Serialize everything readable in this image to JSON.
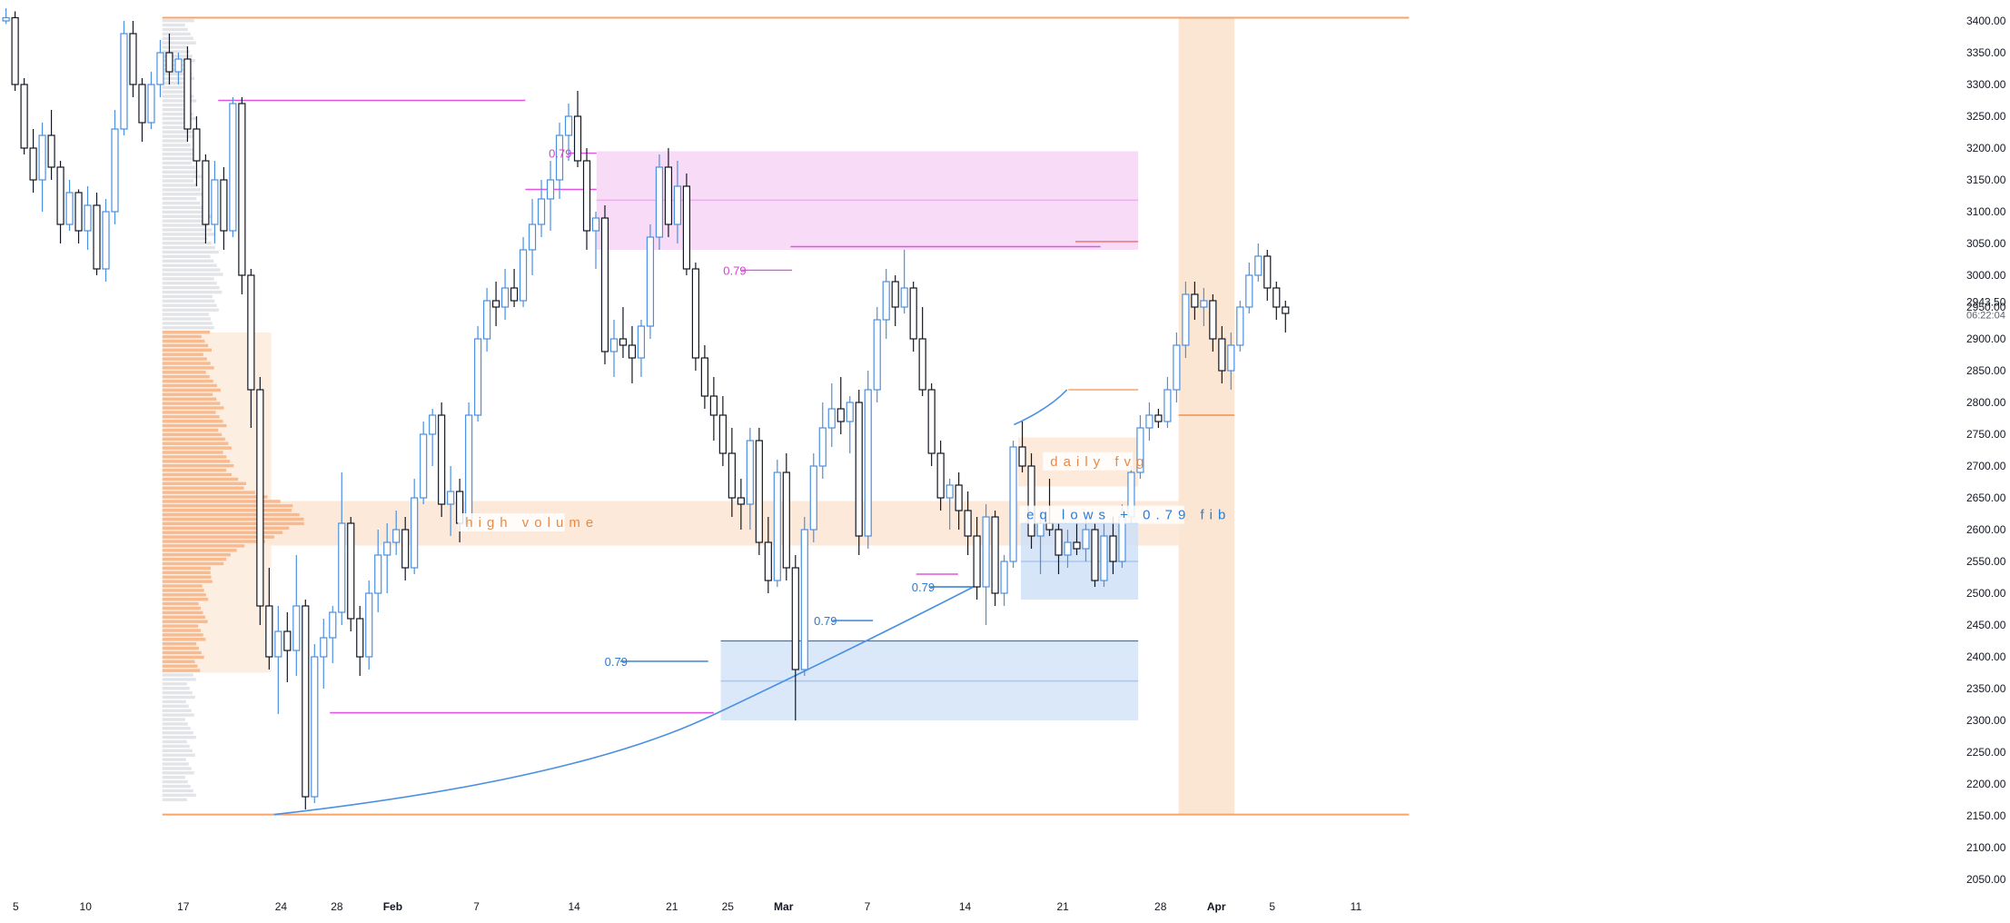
{
  "chart_data": {
    "type": "candlestick",
    "instrument_note": "",
    "y_axis": {
      "ticks": [
        3400,
        3350,
        3300,
        3250,
        3200,
        3150,
        3100,
        3050,
        3000,
        2950,
        2900,
        2850,
        2800,
        2750,
        2700,
        2650,
        2600,
        2550,
        2500,
        2450,
        2400,
        2350,
        2300,
        2250,
        2200,
        2150,
        2100,
        2050
      ],
      "tick_labels": [
        "3400.00",
        "3350.00",
        "3300.00",
        "3250.00",
        "3200.00",
        "3150.00",
        "3100.00",
        "3050.00",
        "3000.00",
        "2950.00",
        "2900.00",
        "2850.00",
        "2800.00",
        "2750.00",
        "2700.00",
        "2650.00",
        "2600.00",
        "2550.00",
        "2500.00",
        "2450.00",
        "2400.00",
        "2350.00",
        "2300.00",
        "2250.00",
        "2200.00",
        "2150.00",
        "2100.00",
        "2050.00"
      ],
      "range": [
        2020,
        3420
      ],
      "last_price_label": "2943.50",
      "countdown_label": "06:22:04"
    },
    "x_axis": {
      "ticks": [
        {
          "day": -26,
          "label": "5"
        },
        {
          "day": -21,
          "label": "10"
        },
        {
          "day": -14,
          "label": "17"
        },
        {
          "day": -7,
          "label": "24"
        },
        {
          "day": -3,
          "label": "28"
        },
        {
          "day": 1,
          "label": "Feb"
        },
        {
          "day": 7,
          "label": "7"
        },
        {
          "day": 14,
          "label": "14"
        },
        {
          "day": 21,
          "label": "21"
        },
        {
          "day": 25,
          "label": "25"
        },
        {
          "day": 29,
          "label": "Mar"
        },
        {
          "day": 35,
          "label": "7"
        },
        {
          "day": 42,
          "label": "14"
        },
        {
          "day": 49,
          "label": "21"
        },
        {
          "day": 56,
          "label": "28"
        },
        {
          "day": 60,
          "label": "Apr"
        },
        {
          "day": 64,
          "label": "5"
        },
        {
          "day": 70,
          "label": "11"
        }
      ],
      "range_days": [
        -27.13,
        73.8
      ]
    },
    "candles": [
      {
        "o": 3400,
        "h": 3420,
        "l": 3395,
        "c": 3405
      },
      {
        "o": 3405,
        "h": 3415,
        "l": 3290,
        "c": 3300
      },
      {
        "o": 3300,
        "h": 3310,
        "l": 3190,
        "c": 3200
      },
      {
        "o": 3200,
        "h": 3230,
        "l": 3130,
        "c": 3150
      },
      {
        "o": 3150,
        "h": 3240,
        "l": 3100,
        "c": 3220
      },
      {
        "o": 3220,
        "h": 3260,
        "l": 3150,
        "c": 3170
      },
      {
        "o": 3170,
        "h": 3180,
        "l": 3050,
        "c": 3080
      },
      {
        "o": 3080,
        "h": 3150,
        "l": 3070,
        "c": 3130
      },
      {
        "o": 3130,
        "h": 3135,
        "l": 3050,
        "c": 3070
      },
      {
        "o": 3070,
        "h": 3140,
        "l": 3040,
        "c": 3110
      },
      {
        "o": 3110,
        "h": 3130,
        "l": 3000,
        "c": 3010
      },
      {
        "o": 3010,
        "h": 3120,
        "l": 2990,
        "c": 3100
      },
      {
        "o": 3100,
        "h": 3260,
        "l": 3080,
        "c": 3230
      },
      {
        "o": 3230,
        "h": 3400,
        "l": 3220,
        "c": 3380
      },
      {
        "o": 3380,
        "h": 3400,
        "l": 3280,
        "c": 3300
      },
      {
        "o": 3300,
        "h": 3310,
        "l": 3210,
        "c": 3240
      },
      {
        "o": 3240,
        "h": 3320,
        "l": 3230,
        "c": 3300
      },
      {
        "o": 3300,
        "h": 3370,
        "l": 3280,
        "c": 3350
      },
      {
        "o": 3350,
        "h": 3380,
        "l": 3300,
        "c": 3320
      },
      {
        "o": 3320,
        "h": 3350,
        "l": 3300,
        "c": 3340
      },
      {
        "o": 3340,
        "h": 3360,
        "l": 3210,
        "c": 3230
      },
      {
        "o": 3230,
        "h": 3250,
        "l": 3140,
        "c": 3180
      },
      {
        "o": 3180,
        "h": 3190,
        "l": 3050,
        "c": 3080
      },
      {
        "o": 3080,
        "h": 3180,
        "l": 3050,
        "c": 3150
      },
      {
        "o": 3150,
        "h": 3170,
        "l": 3040,
        "c": 3070
      },
      {
        "o": 3070,
        "h": 3280,
        "l": 3060,
        "c": 3270
      },
      {
        "o": 3270,
        "h": 3280,
        "l": 2970,
        "c": 3000
      },
      {
        "o": 3000,
        "h": 3010,
        "l": 2760,
        "c": 2820
      },
      {
        "o": 2820,
        "h": 2840,
        "l": 2450,
        "c": 2480
      },
      {
        "o": 2480,
        "h": 2540,
        "l": 2380,
        "c": 2400
      },
      {
        "o": 2400,
        "h": 2480,
        "l": 2310,
        "c": 2440
      },
      {
        "o": 2440,
        "h": 2470,
        "l": 2360,
        "c": 2410
      },
      {
        "o": 2410,
        "h": 2560,
        "l": 2370,
        "c": 2480
      },
      {
        "o": 2480,
        "h": 2490,
        "l": 2160,
        "c": 2180
      },
      {
        "o": 2180,
        "h": 2420,
        "l": 2170,
        "c": 2400
      },
      {
        "o": 2400,
        "h": 2460,
        "l": 2350,
        "c": 2430
      },
      {
        "o": 2430,
        "h": 2480,
        "l": 2390,
        "c": 2470
      },
      {
        "o": 2470,
        "h": 2690,
        "l": 2450,
        "c": 2610
      },
      {
        "o": 2610,
        "h": 2620,
        "l": 2440,
        "c": 2460
      },
      {
        "o": 2460,
        "h": 2480,
        "l": 2370,
        "c": 2400
      },
      {
        "o": 2400,
        "h": 2520,
        "l": 2380,
        "c": 2500
      },
      {
        "o": 2500,
        "h": 2600,
        "l": 2470,
        "c": 2560
      },
      {
        "o": 2560,
        "h": 2610,
        "l": 2500,
        "c": 2580
      },
      {
        "o": 2580,
        "h": 2630,
        "l": 2560,
        "c": 2600
      },
      {
        "o": 2600,
        "h": 2620,
        "l": 2520,
        "c": 2540
      },
      {
        "o": 2540,
        "h": 2680,
        "l": 2530,
        "c": 2650
      },
      {
        "o": 2650,
        "h": 2770,
        "l": 2640,
        "c": 2750
      },
      {
        "o": 2750,
        "h": 2790,
        "l": 2700,
        "c": 2780
      },
      {
        "o": 2780,
        "h": 2800,
        "l": 2620,
        "c": 2640
      },
      {
        "o": 2640,
        "h": 2700,
        "l": 2590,
        "c": 2660
      },
      {
        "o": 2660,
        "h": 2680,
        "l": 2580,
        "c": 2610
      },
      {
        "o": 2610,
        "h": 2800,
        "l": 2600,
        "c": 2780
      },
      {
        "o": 2780,
        "h": 2920,
        "l": 2770,
        "c": 2900
      },
      {
        "o": 2900,
        "h": 2980,
        "l": 2880,
        "c": 2960
      },
      {
        "o": 2960,
        "h": 2990,
        "l": 2920,
        "c": 2950
      },
      {
        "o": 2950,
        "h": 3010,
        "l": 2930,
        "c": 2980
      },
      {
        "o": 2980,
        "h": 3010,
        "l": 2950,
        "c": 2960
      },
      {
        "o": 2960,
        "h": 3060,
        "l": 2950,
        "c": 3040
      },
      {
        "o": 3040,
        "h": 3120,
        "l": 3000,
        "c": 3080
      },
      {
        "o": 3080,
        "h": 3150,
        "l": 3060,
        "c": 3120
      },
      {
        "o": 3120,
        "h": 3180,
        "l": 3070,
        "c": 3150
      },
      {
        "o": 3150,
        "h": 3240,
        "l": 3120,
        "c": 3220
      },
      {
        "o": 3220,
        "h": 3270,
        "l": 3180,
        "c": 3250
      },
      {
        "o": 3250,
        "h": 3290,
        "l": 3170,
        "c": 3180
      },
      {
        "o": 3180,
        "h": 3200,
        "l": 3040,
        "c": 3070
      },
      {
        "o": 3070,
        "h": 3100,
        "l": 3010,
        "c": 3090
      },
      {
        "o": 3090,
        "h": 3110,
        "l": 2860,
        "c": 2880
      },
      {
        "o": 2880,
        "h": 2930,
        "l": 2840,
        "c": 2900
      },
      {
        "o": 2900,
        "h": 2950,
        "l": 2870,
        "c": 2890
      },
      {
        "o": 2890,
        "h": 2920,
        "l": 2830,
        "c": 2870
      },
      {
        "o": 2870,
        "h": 2930,
        "l": 2840,
        "c": 2920
      },
      {
        "o": 2920,
        "h": 3080,
        "l": 2900,
        "c": 3060
      },
      {
        "o": 3060,
        "h": 3190,
        "l": 3040,
        "c": 3170
      },
      {
        "o": 3170,
        "h": 3200,
        "l": 3060,
        "c": 3080
      },
      {
        "o": 3080,
        "h": 3180,
        "l": 3050,
        "c": 3140
      },
      {
        "o": 3140,
        "h": 3160,
        "l": 3000,
        "c": 3010
      },
      {
        "o": 3010,
        "h": 3020,
        "l": 2850,
        "c": 2870
      },
      {
        "o": 2870,
        "h": 2890,
        "l": 2790,
        "c": 2810
      },
      {
        "o": 2810,
        "h": 2840,
        "l": 2740,
        "c": 2780
      },
      {
        "o": 2780,
        "h": 2810,
        "l": 2700,
        "c": 2720
      },
      {
        "o": 2720,
        "h": 2760,
        "l": 2620,
        "c": 2650
      },
      {
        "o": 2650,
        "h": 2680,
        "l": 2600,
        "c": 2640
      },
      {
        "o": 2640,
        "h": 2760,
        "l": 2600,
        "c": 2740
      },
      {
        "o": 2740,
        "h": 2760,
        "l": 2560,
        "c": 2580
      },
      {
        "o": 2580,
        "h": 2620,
        "l": 2500,
        "c": 2520
      },
      {
        "o": 2520,
        "h": 2710,
        "l": 2510,
        "c": 2690
      },
      {
        "o": 2690,
        "h": 2720,
        "l": 2520,
        "c": 2540
      },
      {
        "o": 2540,
        "h": 2560,
        "l": 2300,
        "c": 2380
      },
      {
        "o": 2380,
        "h": 2620,
        "l": 2370,
        "c": 2600
      },
      {
        "o": 2600,
        "h": 2720,
        "l": 2580,
        "c": 2700
      },
      {
        "o": 2700,
        "h": 2800,
        "l": 2680,
        "c": 2760
      },
      {
        "o": 2760,
        "h": 2830,
        "l": 2730,
        "c": 2790
      },
      {
        "o": 2790,
        "h": 2840,
        "l": 2750,
        "c": 2770
      },
      {
        "o": 2770,
        "h": 2810,
        "l": 2720,
        "c": 2800
      },
      {
        "o": 2800,
        "h": 2820,
        "l": 2560,
        "c": 2590
      },
      {
        "o": 2590,
        "h": 2850,
        "l": 2570,
        "c": 2820
      },
      {
        "o": 2820,
        "h": 2950,
        "l": 2800,
        "c": 2930
      },
      {
        "o": 2930,
        "h": 3010,
        "l": 2900,
        "c": 2990
      },
      {
        "o": 2990,
        "h": 3000,
        "l": 2920,
        "c": 2950
      },
      {
        "o": 2950,
        "h": 3040,
        "l": 2940,
        "c": 2980
      },
      {
        "o": 2980,
        "h": 2990,
        "l": 2880,
        "c": 2900
      },
      {
        "o": 2900,
        "h": 2950,
        "l": 2810,
        "c": 2820
      },
      {
        "o": 2820,
        "h": 2830,
        "l": 2700,
        "c": 2720
      },
      {
        "o": 2720,
        "h": 2740,
        "l": 2630,
        "c": 2650
      },
      {
        "o": 2650,
        "h": 2680,
        "l": 2600,
        "c": 2670
      },
      {
        "o": 2670,
        "h": 2690,
        "l": 2600,
        "c": 2630
      },
      {
        "o": 2630,
        "h": 2660,
        "l": 2560,
        "c": 2590
      },
      {
        "o": 2590,
        "h": 2620,
        "l": 2490,
        "c": 2510
      },
      {
        "o": 2510,
        "h": 2640,
        "l": 2450,
        "c": 2620
      },
      {
        "o": 2620,
        "h": 2630,
        "l": 2480,
        "c": 2500
      },
      {
        "o": 2500,
        "h": 2560,
        "l": 2480,
        "c": 2550
      },
      {
        "o": 2550,
        "h": 2740,
        "l": 2540,
        "c": 2730
      },
      {
        "o": 2730,
        "h": 2770,
        "l": 2690,
        "c": 2700
      },
      {
        "o": 2700,
        "h": 2720,
        "l": 2570,
        "c": 2590
      },
      {
        "o": 2590,
        "h": 2630,
        "l": 2530,
        "c": 2610
      },
      {
        "o": 2610,
        "h": 2680,
        "l": 2590,
        "c": 2600
      },
      {
        "o": 2600,
        "h": 2610,
        "l": 2530,
        "c": 2560
      },
      {
        "o": 2560,
        "h": 2600,
        "l": 2540,
        "c": 2580
      },
      {
        "o": 2580,
        "h": 2610,
        "l": 2560,
        "c": 2570
      },
      {
        "o": 2570,
        "h": 2620,
        "l": 2550,
        "c": 2600
      },
      {
        "o": 2600,
        "h": 2610,
        "l": 2510,
        "c": 2520
      },
      {
        "o": 2520,
        "h": 2610,
        "l": 2510,
        "c": 2590
      },
      {
        "o": 2590,
        "h": 2620,
        "l": 2530,
        "c": 2550
      },
      {
        "o": 2550,
        "h": 2640,
        "l": 2540,
        "c": 2620
      },
      {
        "o": 2620,
        "h": 2700,
        "l": 2610,
        "c": 2690
      },
      {
        "o": 2690,
        "h": 2780,
        "l": 2680,
        "c": 2760
      },
      {
        "o": 2760,
        "h": 2800,
        "l": 2740,
        "c": 2780
      },
      {
        "o": 2780,
        "h": 2790,
        "l": 2760,
        "c": 2770
      },
      {
        "o": 2770,
        "h": 2840,
        "l": 2760,
        "c": 2820
      },
      {
        "o": 2820,
        "h": 2910,
        "l": 2800,
        "c": 2890
      },
      {
        "o": 2890,
        "h": 2990,
        "l": 2870,
        "c": 2970
      },
      {
        "o": 2970,
        "h": 2990,
        "l": 2930,
        "c": 2950
      },
      {
        "o": 2950,
        "h": 2980,
        "l": 2920,
        "c": 2960
      },
      {
        "o": 2960,
        "h": 2970,
        "l": 2880,
        "c": 2900
      },
      {
        "o": 2900,
        "h": 2920,
        "l": 2830,
        "c": 2850
      },
      {
        "o": 2850,
        "h": 2910,
        "l": 2820,
        "c": 2890
      },
      {
        "o": 2890,
        "h": 2960,
        "l": 2880,
        "c": 2950
      },
      {
        "o": 2950,
        "h": 3020,
        "l": 2940,
        "c": 3000
      },
      {
        "o": 3000,
        "h": 3050,
        "l": 2990,
        "c": 3030
      },
      {
        "o": 3030,
        "h": 3040,
        "l": 2960,
        "c": 2980
      },
      {
        "o": 2980,
        "h": 2990,
        "l": 2930,
        "c": 2950
      },
      {
        "o": 2950,
        "h": 2960,
        "l": 2910,
        "c": 2940
      }
    ],
    "annotations": {
      "lines_orange": [
        {
          "from_day": -15.5,
          "to_day": 73.8,
          "y": 3405
        },
        {
          "from_day": -15.5,
          "to_day": 73.8,
          "y": 2152
        }
      ],
      "lines_magenta": [
        {
          "from_day": -11.5,
          "to_day": 10.5,
          "y": 3275
        },
        {
          "from_day": 10.5,
          "to_day": 15.6,
          "y": 3135
        },
        {
          "from_day": -3.5,
          "to_day": 24,
          "y": 2312
        },
        {
          "from_day": 29.5,
          "to_day": 51.7,
          "y": 3045
        },
        {
          "from_day": 38.5,
          "to_day": 41.5,
          "y": 2530
        }
      ],
      "level_2850": {
        "y": 2820
      },
      "fib_labels": [
        {
          "text": "0.79",
          "day": 13,
          "y": 3192,
          "color": "#d63fd6"
        },
        {
          "text": "0.79",
          "day": 25.5,
          "y": 3008,
          "color": "#d63fd6"
        },
        {
          "text": "0.79",
          "day": 17,
          "y": 2393,
          "color": "#2a7bd3"
        },
        {
          "text": "0.79",
          "day": 32,
          "y": 2457,
          "color": "#2a7bd3"
        },
        {
          "text": "0.79",
          "day": 39,
          "y": 2510,
          "color": "#2a7bd3"
        }
      ],
      "zones": {
        "magenta_zone": {
          "y_top": 3195,
          "y_bottom": 3040,
          "mid": 3118
        },
        "high_volume": {
          "y_top": 2645,
          "y_bottom": 2575,
          "label": "high volume"
        },
        "daily_fvg": {
          "y_top": 2745,
          "y_bottom": 2668,
          "label": "daily fvg"
        },
        "eq_lows": {
          "y_top": 2610,
          "y_bottom": 2490,
          "mid": 2550,
          "label": "eq lows + 0.79 fib"
        },
        "lower_blue": {
          "y_top": 2425,
          "y_bottom": 2300,
          "mid": 2362
        },
        "right_panel_mid": 2780
      }
    }
  },
  "colors": {
    "up": "#4a90e2",
    "down": "#131722",
    "orange": "#f7a46b",
    "magenta": "#e255e2",
    "blue": "#2a7bd3",
    "grid_text": "#131722"
  }
}
